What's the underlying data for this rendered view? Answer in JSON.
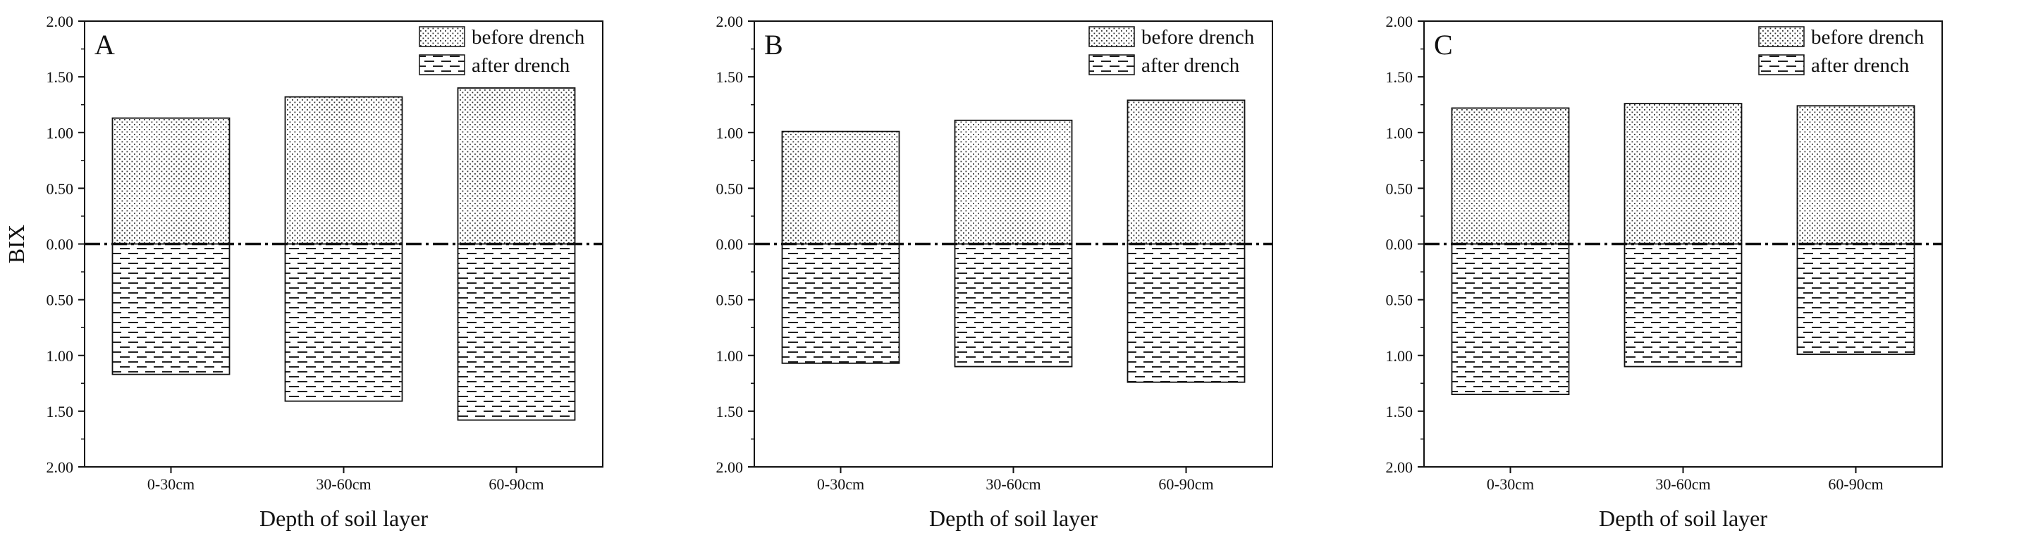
{
  "chart_data": [
    {
      "type": "bar",
      "panel": "A",
      "categories": [
        "0-30cm",
        "30-60cm",
        "60-90cm"
      ],
      "series": [
        {
          "name": "before drench",
          "values": [
            1.13,
            1.32,
            1.4
          ]
        },
        {
          "name": "after drench",
          "values": [
            1.17,
            1.41,
            1.58
          ]
        }
      ],
      "xlabel": "Depth of soil layer",
      "ylabel": "BIX",
      "ylim": [
        -2.0,
        2.0
      ],
      "yticks": [
        "2.00",
        "1.50",
        "1.00",
        "0.50",
        "0.00",
        "0.50",
        "1.00",
        "1.50",
        "2.00"
      ],
      "legend_position": "top-right",
      "reference_line": 0.0
    },
    {
      "type": "bar",
      "panel": "B",
      "categories": [
        "0-30cm",
        "30-60cm",
        "60-90cm"
      ],
      "series": [
        {
          "name": "before drench",
          "values": [
            1.01,
            1.11,
            1.29
          ]
        },
        {
          "name": "after drench",
          "values": [
            1.07,
            1.1,
            1.24
          ]
        }
      ],
      "xlabel": "Depth of soil layer",
      "ylabel": "",
      "ylim": [
        -2.0,
        2.0
      ],
      "yticks": [
        "2.00",
        "1.50",
        "1.00",
        "0.50",
        "0.00",
        "0.50",
        "1.00",
        "1.50",
        "2.00"
      ],
      "legend_position": "top-right",
      "reference_line": 0.0
    },
    {
      "type": "bar",
      "panel": "C",
      "categories": [
        "0-30cm",
        "30-60cm",
        "60-90cm"
      ],
      "series": [
        {
          "name": "before drench",
          "values": [
            1.22,
            1.26,
            1.24
          ]
        },
        {
          "name": "after drench",
          "values": [
            1.35,
            1.1,
            0.99
          ]
        }
      ],
      "xlabel": "Depth of soil layer",
      "ylabel": "",
      "ylim": [
        -2.0,
        2.0
      ],
      "yticks": [
        "2.00",
        "1.50",
        "1.00",
        "0.50",
        "0.00",
        "0.50",
        "1.00",
        "1.50",
        "2.00"
      ],
      "legend_position": "top-right",
      "reference_line": 0.0
    }
  ]
}
